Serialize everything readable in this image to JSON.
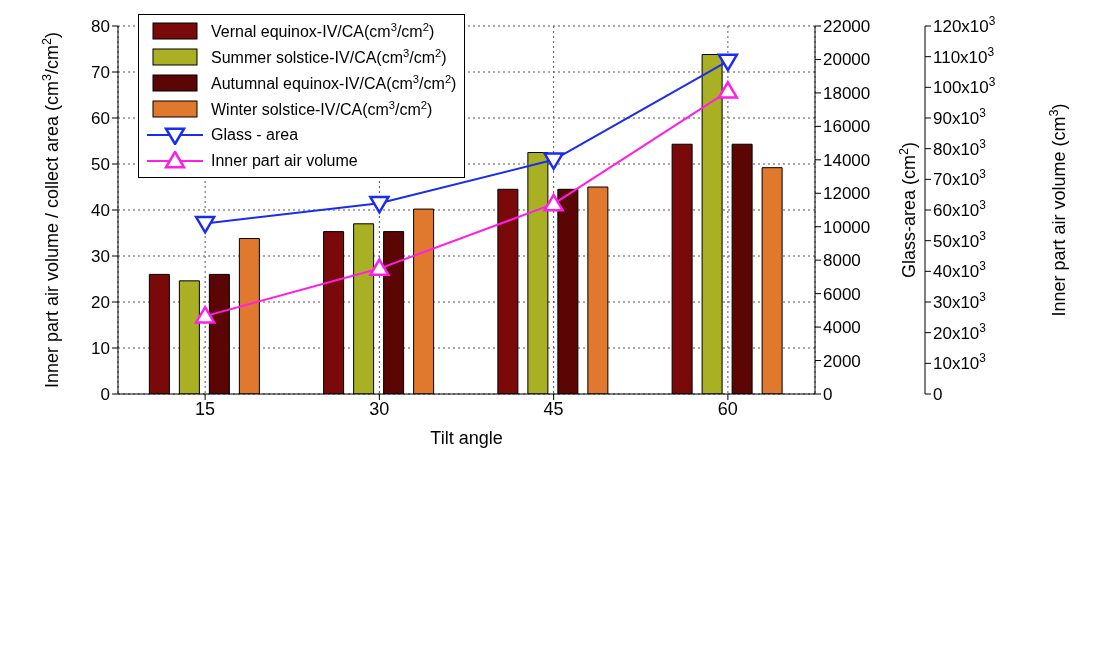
{
  "chart_data": {
    "type": "bar",
    "xlabel": "Tilt angle",
    "ylabel": "Inner part air volume / collect area (cm$^{3}$/cm$^{2}$)",
    "y2label": "Glass-area (cm$^{2}$)",
    "y3label": "Inner part air volume (cm$^{3}$)",
    "categories": [
      "15",
      "30",
      "45",
      "60"
    ],
    "series": [
      {
        "name": "Vernal equinox-IV/CA(cm$^{3}$/cm$^{2}$)",
        "color": "#7a0a0a",
        "values": [
          26,
          35.3,
          44.5,
          54.3
        ]
      },
      {
        "name": "Summer solstice-IV/CA(cm$^{3}$/cm$^{2}$)",
        "color": "#a9b024",
        "values": [
          24.6,
          37,
          52.5,
          73.8
        ]
      },
      {
        "name": "Autumnal equinox-IV/CA(cm$^{3}$/cm$^{2}$)",
        "color": "#5c0505",
        "values": [
          26,
          35.3,
          44.5,
          54.3
        ]
      },
      {
        "name": "Winter solstice-IV/CA(cm$^{3}$/cm$^{2}$)",
        "color": "#e0782e",
        "values": [
          33.8,
          40.2,
          45,
          49.2
        ]
      },
      {
        "name": "Glass - area",
        "type": "line",
        "axis": "y2",
        "color": "#1a2cf0",
        "values": [
          10200,
          11400,
          14000,
          19900
        ]
      },
      {
        "name": "Inner part air volume",
        "type": "line",
        "axis": "y3",
        "color": "#ff1ee8",
        "values": [
          25400,
          40900,
          62000,
          98700
        ]
      }
    ],
    "ylim": [
      0,
      80
    ],
    "yticks": [
      0,
      10,
      20,
      30,
      40,
      50,
      60,
      70,
      80
    ],
    "y2lim": [
      0,
      22000
    ],
    "y2ticks": [
      0,
      2000,
      4000,
      6000,
      8000,
      10000,
      12000,
      14000,
      16000,
      18000,
      20000,
      22000
    ],
    "y3lim": [
      0,
      120000
    ],
    "y3ticks": [
      0,
      {
        "value": 10000,
        "label": "10x10$^{3}$"
      },
      {
        "value": 20000,
        "label": "20x10$^{3}$"
      },
      {
        "value": 30000,
        "label": "30x10$^{3}$"
      },
      {
        "value": 40000,
        "label": "40x10$^{3}$"
      },
      {
        "value": 50000,
        "label": "50x10$^{3}$"
      },
      {
        "value": 60000,
        "label": "60x10$^{3}$"
      },
      {
        "value": 70000,
        "label": "70x10$^{3}$"
      },
      {
        "value": 80000,
        "label": "80x10$^{3}$"
      },
      {
        "value": 90000,
        "label": "90x10$^{3}$"
      },
      {
        "value": 100000,
        "label": "100x10$^{3}$"
      },
      {
        "value": 110000,
        "label": "110x10$^{3}$"
      },
      {
        "value": 120000,
        "label": "120x10$^{3}$"
      }
    ],
    "grid": true,
    "legend": "top left",
    "marker": "triangle"
  }
}
